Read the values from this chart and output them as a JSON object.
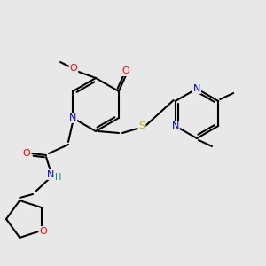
{
  "background_color": "#e8e8e8",
  "bond_color": "#000000",
  "atom_colors": {
    "O": "#ff0000",
    "N": "#0000cc",
    "S": "#ccaa00",
    "C": "#000000",
    "H": "#008080"
  },
  "figsize": [
    3.0,
    3.0
  ],
  "dpi": 100
}
